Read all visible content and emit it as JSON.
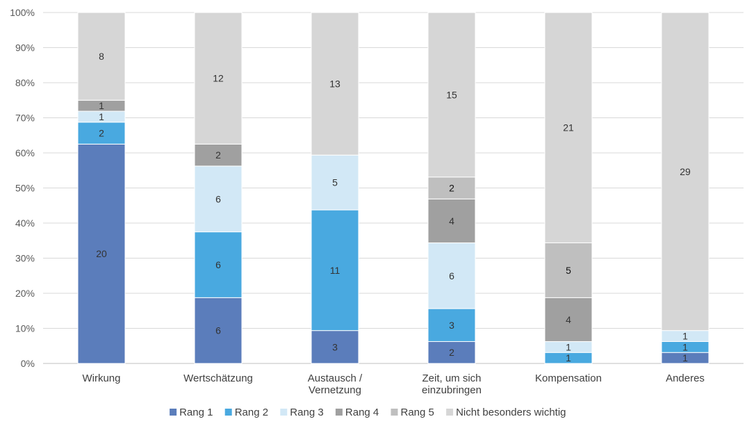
{
  "chart_data": {
    "type": "bar",
    "stacked": true,
    "normalized": true,
    "categories": [
      [
        "Wirkung"
      ],
      [
        "Wertschätzung"
      ],
      [
        "Austausch /",
        "Vernetzung"
      ],
      [
        "Zeit, um sich",
        "einzubringen"
      ],
      [
        "Kompensation"
      ],
      [
        "Anderes"
      ]
    ],
    "series": [
      {
        "name": "Rang 1",
        "color": "#5b7dbb",
        "values": [
          20,
          6,
          3,
          2,
          0,
          1
        ],
        "label_color": "#333333"
      },
      {
        "name": "Rang 2",
        "color": "#49a9e0",
        "values": [
          2,
          6,
          11,
          3,
          1,
          1
        ],
        "label_color": "#333333"
      },
      {
        "name": "Rang 3",
        "color": "#d2e8f6",
        "values": [
          1,
          6,
          5,
          6,
          1,
          1
        ],
        "label_color": "#333333"
      },
      {
        "name": "Rang 4",
        "color": "#a0a0a0",
        "values": [
          1,
          2,
          0,
          4,
          4,
          0
        ],
        "label_color": "#333333"
      },
      {
        "name": "Rang 5",
        "color": "#bfbfbf",
        "values": [
          0,
          0,
          0,
          2,
          5,
          0
        ],
        "label_color": "#111111"
      },
      {
        "name": "Nicht besonders wichtig",
        "color": "#d6d6d6",
        "values": [
          8,
          12,
          13,
          15,
          21,
          29
        ],
        "label_color": "#333333"
      }
    ],
    "y_ticks": [
      "0%",
      "10%",
      "20%",
      "30%",
      "40%",
      "50%",
      "60%",
      "70%",
      "80%",
      "90%",
      "100%"
    ],
    "ylim": [
      0,
      100
    ],
    "grid": true,
    "legend_position": "bottom",
    "title": "",
    "xlabel": "",
    "ylabel": ""
  }
}
